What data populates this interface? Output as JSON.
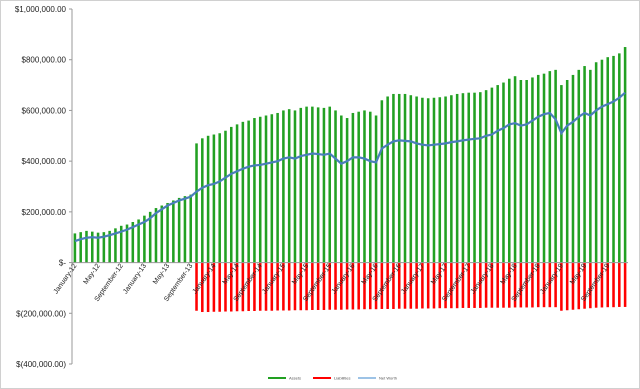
{
  "chart_data": {
    "type": "bar_line",
    "categories": [
      "January-12",
      null,
      null,
      null,
      "May-12",
      null,
      null,
      null,
      "September-12",
      null,
      null,
      null,
      "January-13",
      null,
      null,
      null,
      "May-13",
      null,
      null,
      null,
      "September-13",
      null,
      null,
      null,
      "January-14",
      null,
      null,
      null,
      "May-14",
      null,
      null,
      null,
      "September-14",
      null,
      null,
      null,
      "January-15",
      null,
      null,
      null,
      "May-15",
      null,
      null,
      null,
      "September-15",
      null,
      null,
      null,
      "January-16",
      null,
      null,
      null,
      "May-16",
      null,
      null,
      null,
      "September-16",
      null,
      null,
      null,
      "January-17",
      null,
      null,
      null,
      "May-17",
      null,
      null,
      null,
      "September-17",
      null,
      null,
      null,
      "January-18",
      null,
      null,
      null,
      "May-18",
      null,
      null,
      null,
      "September-18",
      null,
      null,
      null,
      "January-19",
      null,
      null,
      null,
      "May-19",
      null,
      null,
      null,
      "September-19",
      null,
      null,
      null
    ],
    "series": [
      {
        "name": "Assets",
        "color": "#22a022",
        "kind": "bar",
        "values": [
          115000,
          120000,
          125000,
          122000,
          118000,
          120000,
          125000,
          135000,
          145000,
          150000,
          160000,
          170000,
          185000,
          200000,
          215000,
          225000,
          235000,
          245000,
          255000,
          262000,
          268000,
          470000,
          490000,
          500000,
          505000,
          510000,
          520000,
          535000,
          545000,
          555000,
          560000,
          570000,
          575000,
          580000,
          585000,
          590000,
          600000,
          605000,
          600000,
          610000,
          615000,
          615000,
          612000,
          610000,
          615000,
          600000,
          580000,
          570000,
          590000,
          595000,
          600000,
          595000,
          580000,
          640000,
          655000,
          665000,
          665000,
          665000,
          660000,
          655000,
          650000,
          648000,
          650000,
          652000,
          655000,
          660000,
          665000,
          668000,
          670000,
          670000,
          672000,
          680000,
          690000,
          700000,
          710000,
          725000,
          735000,
          720000,
          720000,
          730000,
          740000,
          745000,
          755000,
          760000,
          700000,
          720000,
          740000,
          760000,
          775000,
          760000,
          790000,
          800000,
          810000,
          815000,
          825000,
          850000
        ]
      },
      {
        "name": "Liabilities",
        "color": "#ff0000",
        "kind": "bar",
        "values": [
          0,
          0,
          0,
          0,
          0,
          0,
          0,
          0,
          0,
          0,
          0,
          0,
          0,
          0,
          0,
          0,
          0,
          0,
          0,
          0,
          0,
          -190000,
          -195000,
          -195000,
          -194000,
          -194000,
          -193000,
          -193000,
          -192000,
          -192000,
          -191000,
          -191000,
          -190000,
          -190000,
          -190000,
          -189000,
          -189000,
          -189000,
          -188000,
          -188000,
          -188000,
          -187000,
          -187000,
          -187000,
          -186000,
          -186000,
          -186000,
          -185000,
          -185000,
          -185000,
          -184000,
          -184000,
          -184000,
          -183000,
          -183000,
          -183000,
          -182000,
          -182000,
          -182000,
          -182000,
          -181000,
          -181000,
          -181000,
          -180000,
          -180000,
          -180000,
          -180000,
          -179000,
          -179000,
          -179000,
          -179000,
          -178000,
          -178000,
          -178000,
          -178000,
          -178000,
          -177000,
          -177000,
          -177000,
          -177000,
          -176000,
          -176000,
          -176000,
          -176000,
          -190000,
          -188000,
          -186000,
          -184000,
          -182000,
          -180000,
          -178000,
          -177000,
          -176000,
          -176000,
          -175000,
          -175000
        ]
      },
      {
        "name": "Net Worth",
        "color": "#4a7ebb",
        "kind": "line",
        "values": [
          85000,
          92000,
          98000,
          100000,
          98000,
          102000,
          108000,
          115000,
          122000,
          130000,
          140000,
          150000,
          160000,
          175000,
          195000,
          210000,
          225000,
          235000,
          245000,
          252000,
          260000,
          280000,
          295000,
          305000,
          310000,
          320000,
          335000,
          350000,
          360000,
          370000,
          378000,
          383000,
          385000,
          390000,
          395000,
          400000,
          410000,
          415000,
          410000,
          420000,
          425000,
          430000,
          428000,
          425000,
          430000,
          410000,
          390000,
          400000,
          415000,
          415000,
          410000,
          400000,
          395000,
          450000,
          465000,
          478000,
          482000,
          480000,
          478000,
          470000,
          465000,
          462000,
          465000,
          467000,
          470000,
          475000,
          478000,
          482000,
          485000,
          488000,
          490000,
          500000,
          505000,
          520000,
          530000,
          545000,
          550000,
          540000,
          545000,
          560000,
          575000,
          585000,
          590000,
          565000,
          510000,
          540000,
          555000,
          575000,
          590000,
          580000,
          600000,
          615000,
          625000,
          635000,
          650000,
          670000
        ]
      }
    ],
    "ylim": [
      -400000,
      1000000
    ],
    "yticks": [
      {
        "value": -400000,
        "label": "$(400,000.00)"
      },
      {
        "value": -200000,
        "label": "$(200,000.00)"
      },
      {
        "value": 0,
        "label": "$-"
      },
      {
        "value": 200000,
        "label": "$200,000.00"
      },
      {
        "value": 400000,
        "label": "$400,000.00"
      },
      {
        "value": 600000,
        "label": "$600,000.00"
      },
      {
        "value": 800000,
        "label": "$800,000.00"
      },
      {
        "value": 1000000,
        "label": "$1,000,000.00"
      }
    ],
    "legend": "bottom"
  }
}
